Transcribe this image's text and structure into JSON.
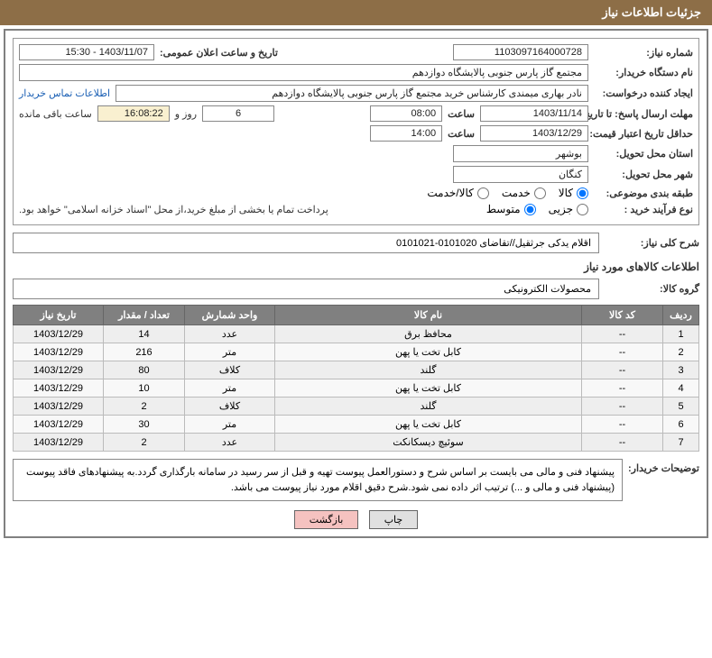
{
  "header": {
    "title": "جزئیات اطلاعات نیاز"
  },
  "form": {
    "req_no_label": "شماره نیاز:",
    "req_no": "1103097164000728",
    "announce_label": "تاریخ و ساعت اعلان عمومی:",
    "announce_value": "1403/11/07 - 15:30",
    "buyer_label": "نام دستگاه خریدار:",
    "buyer_value": "مجتمع گاز پارس جنوبی  پالایشگاه دوازدهم",
    "creator_label": "ایجاد کننده درخواست:",
    "creator_value": "نادر بهاری میمندی کارشناس خرید مجتمع گاز پارس جنوبی  پالایشگاه دوازدهم",
    "contact_link": "اطلاعات تماس خریدار",
    "deadline_label": "مهلت ارسال پاسخ: تا تاریخ:",
    "deadline_date": "1403/11/14",
    "time_label": "ساعت",
    "deadline_time": "08:00",
    "days_remain": "6",
    "days_and": "روز و",
    "hours_remain": "16:08:22",
    "remain_suffix": "ساعت باقی مانده",
    "validity_label": "حداقل تاریخ اعتبار قیمت: تا تاریخ:",
    "validity_date": "1403/12/29",
    "validity_time": "14:00",
    "province_label": "استان محل تحویل:",
    "province_value": "بوشهر",
    "city_label": "شهر محل تحویل:",
    "city_value": "کنگان",
    "category_label": "طبقه بندی موضوعی:",
    "cat_opt1": "کالا",
    "cat_opt2": "خدمت",
    "cat_opt3": "کالا/خدمت",
    "proc_type_label": "نوع فرآیند خرید :",
    "proc_opt1": "جزیی",
    "proc_opt2": "متوسط",
    "proc_note": "پرداخت تمام یا بخشی از مبلغ خرید،از محل \"اسناد خزانه اسلامی\" خواهد بود."
  },
  "need": {
    "overall_label": "شرح کلی نیاز:",
    "overall_value": "اقلام یدکی جرثقیل//تقاضای 0101020-0101021",
    "items_title": "اطلاعات کالاهای مورد نیاز",
    "group_label": "گروه کالا:",
    "group_value": "محصولات الکترونیکی"
  },
  "table": {
    "headers": {
      "row": "ردیف",
      "code": "کد کالا",
      "name": "نام کالا",
      "unit": "واحد شمارش",
      "qty": "تعداد / مقدار",
      "date": "تاریخ نیاز"
    },
    "rows": [
      {
        "row": "1",
        "code": "--",
        "name": "محافظ برق",
        "unit": "عدد",
        "qty": "14",
        "date": "1403/12/29"
      },
      {
        "row": "2",
        "code": "--",
        "name": "کابل تخت یا پهن",
        "unit": "متر",
        "qty": "216",
        "date": "1403/12/29"
      },
      {
        "row": "3",
        "code": "--",
        "name": "گلند",
        "unit": "کلاف",
        "qty": "80",
        "date": "1403/12/29"
      },
      {
        "row": "4",
        "code": "--",
        "name": "کابل تخت یا پهن",
        "unit": "متر",
        "qty": "10",
        "date": "1403/12/29"
      },
      {
        "row": "5",
        "code": "--",
        "name": "گلند",
        "unit": "کلاف",
        "qty": "2",
        "date": "1403/12/29"
      },
      {
        "row": "6",
        "code": "--",
        "name": "کابل تخت یا پهن",
        "unit": "متر",
        "qty": "30",
        "date": "1403/12/29"
      },
      {
        "row": "7",
        "code": "--",
        "name": "سوئیچ دیسکانکت",
        "unit": "عدد",
        "qty": "2",
        "date": "1403/12/29"
      }
    ]
  },
  "notes": {
    "label": "توضیحات خریدار:",
    "text": "پیشنهاد فنی و مالی می بایست بر اساس شرح و دستورالعمل پیوست تهیه و قبل از سر رسید در سامانه بارگذاری گردد.به پیشنهادهای فاقد پیوست (پیشنهاد فنی و مالی و ...) ترتیب اثر داده نمی شود.شرح دقیق اقلام مورد نیاز پیوست می باشد."
  },
  "buttons": {
    "print": "چاپ",
    "back": "بازگشت"
  },
  "styling": {
    "header_bg": "#8d6e47",
    "header_fg": "#ffffff",
    "th_bg": "#808080",
    "th_fg": "#ffffff",
    "border_color": "#808080",
    "link_color": "#1a5fb4",
    "btn_back_bg": "#f5c2c0",
    "row_odd_bg": "#eeeeee",
    "row_even_bg": "#f8f8f8"
  }
}
